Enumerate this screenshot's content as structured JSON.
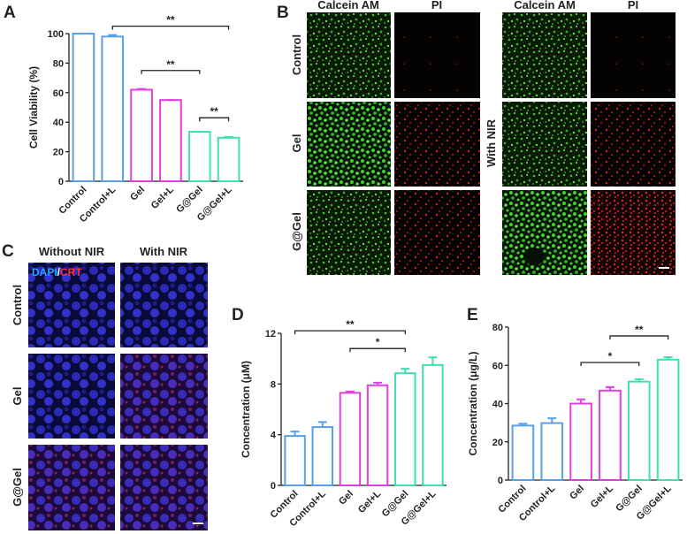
{
  "chart_data": [
    {
      "type": "bar",
      "ylabel": "Cell Viability (%)",
      "categories": [
        "Control",
        "Control+L",
        "Gel",
        "Gel+L",
        "G@Gel",
        "G@Gel+L"
      ],
      "values": [
        100,
        98,
        62,
        55,
        33.5,
        29.5
      ],
      "errors": [
        0,
        1,
        0.5,
        0,
        0,
        0.5
      ],
      "colors": [
        "#5aa0e6",
        "#5aa0e6",
        "#e040e0",
        "#e040e0",
        "#3ee0b0",
        "#3ee0b0"
      ],
      "ylim": [
        0,
        100
      ],
      "yticks": [
        0,
        20,
        40,
        60,
        80,
        100
      ],
      "annotations": [
        {
          "from": 1,
          "to": 5,
          "y": 105,
          "label": "**"
        },
        {
          "from": 2,
          "to": 4,
          "y": 75,
          "label": "**"
        },
        {
          "from": 4,
          "to": 5,
          "y": 43,
          "label": "**"
        }
      ]
    },
    {
      "type": "bar",
      "ylabel": "Concentration (μM)",
      "categories": [
        "Control",
        "Control+L",
        "Gel",
        "Gel+L",
        "G@Gel",
        "G@Gel+L"
      ],
      "values": [
        3.9,
        4.6,
        7.3,
        7.9,
        8.85,
        9.5
      ],
      "errors": [
        0.35,
        0.4,
        0.1,
        0.2,
        0.35,
        0.6
      ],
      "colors": [
        "#5aa0e6",
        "#5aa0e6",
        "#e040e0",
        "#e040e0",
        "#3ee0b0",
        "#3ee0b0"
      ],
      "ylim": [
        0,
        12
      ],
      "yticks": [
        0,
        4,
        8,
        12
      ],
      "annotations": [
        {
          "from": 0,
          "to": 4,
          "y": 12.2,
          "label": "**"
        },
        {
          "from": 2,
          "to": 4,
          "y": 10.8,
          "label": "*"
        }
      ]
    },
    {
      "type": "bar",
      "ylabel": "Concentration (μg/L)",
      "categories": [
        "Control",
        "Control+L",
        "Gel",
        "Gel+L",
        "G@Gel",
        "G@Gel+L"
      ],
      "values": [
        28.5,
        29.8,
        40,
        46.8,
        51.5,
        63
      ],
      "errors": [
        1,
        2.5,
        2.2,
        1.8,
        1.3,
        1.3
      ],
      "colors": [
        "#5aa0e6",
        "#5aa0e6",
        "#e040e0",
        "#e040e0",
        "#3ee0b0",
        "#3ee0b0"
      ],
      "ylim": [
        0,
        80
      ],
      "yticks": [
        0,
        20,
        40,
        60,
        80
      ],
      "annotations": [
        {
          "from": 3,
          "to": 5,
          "y": 75.4,
          "label": "**"
        },
        {
          "from": 2,
          "to": 4,
          "y": 61.5,
          "label": "*"
        }
      ]
    }
  ],
  "panels": {
    "letters": [
      "A",
      "B",
      "C",
      "D",
      "E"
    ],
    "b": {
      "headers": [
        "Calcein AM",
        "PI",
        "Calcein AM",
        "PI"
      ],
      "rows": [
        "Control",
        "Gel",
        "G@Gel"
      ],
      "side_label": "With NIR"
    },
    "c": {
      "headers": [
        "Without NIR",
        "With NIR"
      ],
      "rows": [
        "Control",
        "Gel",
        "G@Gel"
      ],
      "stain": [
        "DAPI",
        "/",
        "CRT"
      ]
    }
  }
}
